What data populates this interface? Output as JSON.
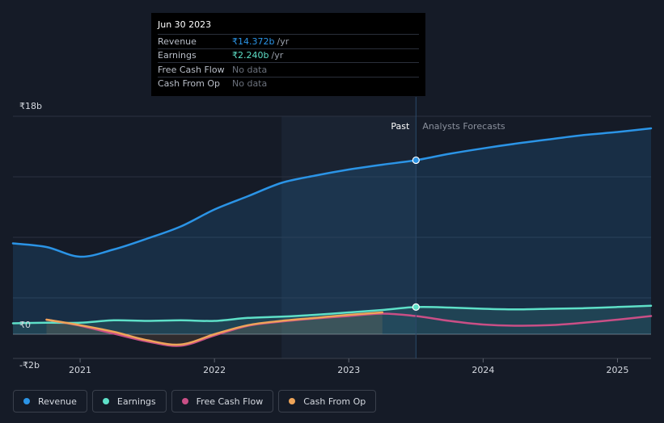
{
  "tooltip": {
    "date": "Jun 30 2023",
    "rows": [
      {
        "label": "Revenue",
        "value": "₹14.372b",
        "unit": "/yr",
        "color": "#2b94e6"
      },
      {
        "label": "Earnings",
        "value": "₹2.240b",
        "unit": "/yr",
        "color": "#5ee0c8"
      },
      {
        "label": "Free Cash Flow",
        "value": "No data",
        "unit": "",
        "color": ""
      },
      {
        "label": "Cash From Op",
        "value": "No data",
        "unit": "",
        "color": ""
      }
    ]
  },
  "legend": [
    {
      "label": "Revenue",
      "color": "#2b94e6"
    },
    {
      "label": "Earnings",
      "color": "#5ee0c8"
    },
    {
      "label": "Free Cash Flow",
      "color": "#c94f86"
    },
    {
      "label": "Cash From Op",
      "color": "#eea459"
    }
  ],
  "chart_data": {
    "type": "line",
    "title": "",
    "xlabel": "",
    "ylabel": "",
    "ylim": [
      -2,
      18
    ],
    "xlim": [
      2020.5,
      2025.25
    ],
    "y_tick_labels": [
      {
        "value": 18,
        "label": "₹18b"
      },
      {
        "value": 0,
        "label": "₹0"
      },
      {
        "value": -2,
        "label": "-₹2b"
      }
    ],
    "x_ticks": [
      {
        "value": 2021,
        "label": "2021"
      },
      {
        "value": 2022,
        "label": "2022"
      },
      {
        "value": 2023,
        "label": "2023"
      },
      {
        "value": 2024,
        "label": "2024"
      },
      {
        "value": 2025,
        "label": "2025"
      }
    ],
    "past_label": "Past",
    "forecast_label": "Analysts Forecasts",
    "past_shade_start": 2022.5,
    "divider_x": 2023.5,
    "units": "₹ billions",
    "series": [
      {
        "name": "Revenue",
        "color": "#2b94e6",
        "fill": true,
        "points": [
          [
            2020.5,
            7.5
          ],
          [
            2020.75,
            7.2
          ],
          [
            2021.0,
            6.4
          ],
          [
            2021.25,
            7.0
          ],
          [
            2021.5,
            7.9
          ],
          [
            2021.75,
            8.9
          ],
          [
            2022.0,
            10.3
          ],
          [
            2022.25,
            11.4
          ],
          [
            2022.5,
            12.5
          ],
          [
            2022.75,
            13.1
          ],
          [
            2023.0,
            13.6
          ],
          [
            2023.25,
            14.0
          ],
          [
            2023.5,
            14.37
          ],
          [
            2023.75,
            14.9
          ],
          [
            2024.0,
            15.35
          ],
          [
            2024.25,
            15.75
          ],
          [
            2024.5,
            16.1
          ],
          [
            2024.75,
            16.45
          ],
          [
            2025.0,
            16.7
          ],
          [
            2025.25,
            17.0
          ]
        ],
        "marker": [
          2023.5,
          14.37
        ]
      },
      {
        "name": "Earnings",
        "color": "#5ee0c8",
        "fill": true,
        "points": [
          [
            2020.5,
            0.9
          ],
          [
            2020.75,
            0.95
          ],
          [
            2021.0,
            0.95
          ],
          [
            2021.25,
            1.15
          ],
          [
            2021.5,
            1.1
          ],
          [
            2021.75,
            1.15
          ],
          [
            2022.0,
            1.1
          ],
          [
            2022.25,
            1.35
          ],
          [
            2022.5,
            1.45
          ],
          [
            2022.75,
            1.6
          ],
          [
            2023.0,
            1.8
          ],
          [
            2023.25,
            2.0
          ],
          [
            2023.5,
            2.24
          ],
          [
            2023.75,
            2.2
          ],
          [
            2024.0,
            2.1
          ],
          [
            2024.25,
            2.05
          ],
          [
            2024.5,
            2.1
          ],
          [
            2024.75,
            2.15
          ],
          [
            2025.0,
            2.25
          ],
          [
            2025.25,
            2.35
          ]
        ],
        "marker": [
          2023.5,
          2.24
        ]
      },
      {
        "name": "Free Cash Flow",
        "color": "#c94f86",
        "fill": false,
        "points": [
          [
            2020.75,
            1.2
          ],
          [
            2021.0,
            0.7
          ],
          [
            2021.25,
            0.05
          ],
          [
            2021.5,
            -0.6
          ],
          [
            2021.75,
            -0.95
          ],
          [
            2022.0,
            -0.1
          ],
          [
            2022.25,
            0.7
          ],
          [
            2022.5,
            1.05
          ],
          [
            2022.75,
            1.3
          ],
          [
            2023.0,
            1.5
          ],
          [
            2023.25,
            1.7
          ],
          [
            2023.5,
            1.5
          ],
          [
            2023.75,
            1.1
          ],
          [
            2024.0,
            0.8
          ],
          [
            2024.25,
            0.7
          ],
          [
            2024.5,
            0.75
          ],
          [
            2024.75,
            0.95
          ],
          [
            2025.0,
            1.2
          ],
          [
            2025.25,
            1.5
          ]
        ]
      },
      {
        "name": "Cash From Op",
        "color": "#eea459",
        "fill": true,
        "points": [
          [
            2020.75,
            1.2
          ],
          [
            2021.0,
            0.75
          ],
          [
            2021.25,
            0.2
          ],
          [
            2021.5,
            -0.5
          ],
          [
            2021.75,
            -0.85
          ],
          [
            2022.0,
            0.0
          ],
          [
            2022.25,
            0.75
          ],
          [
            2022.5,
            1.1
          ],
          [
            2022.75,
            1.35
          ],
          [
            2023.0,
            1.6
          ],
          [
            2023.25,
            1.8
          ]
        ]
      }
    ]
  }
}
